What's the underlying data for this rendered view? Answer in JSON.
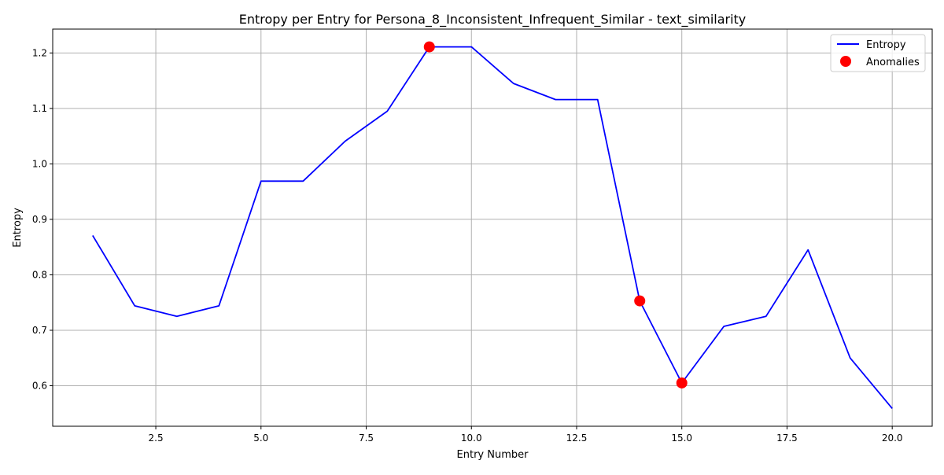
{
  "chart_data": {
    "type": "line",
    "title": "Entropy per Entry for Persona_8_Inconsistent_Infrequent_Similar - text_similarity",
    "xlabel": "Entry Number",
    "ylabel": "Entropy",
    "xlim": [
      0.05,
      20.95
    ],
    "ylim": [
      0.527,
      1.243
    ],
    "xticks": [
      2.5,
      5.0,
      7.5,
      10.0,
      12.5,
      15.0,
      17.5,
      20.0
    ],
    "xtick_labels": [
      "2.5",
      "5.0",
      "7.5",
      "10.0",
      "12.5",
      "15.0",
      "17.5",
      "20.0"
    ],
    "yticks": [
      0.6,
      0.7,
      0.8,
      0.9,
      1.0,
      1.1,
      1.2
    ],
    "ytick_labels": [
      "0.6",
      "0.7",
      "0.8",
      "0.9",
      "1.0",
      "1.1",
      "1.2"
    ],
    "grid": true,
    "legend_position": "top-right",
    "series": [
      {
        "name": "Entropy",
        "kind": "line",
        "color": "#0000ff",
        "x": [
          1,
          2,
          3,
          4,
          5,
          6,
          7,
          8,
          9,
          10,
          11,
          12,
          13,
          14,
          15,
          16,
          17,
          18,
          19,
          20
        ],
        "y": [
          0.871,
          0.744,
          0.725,
          0.744,
          0.969,
          0.969,
          1.041,
          1.095,
          1.211,
          1.211,
          1.145,
          1.116,
          1.116,
          0.753,
          0.605,
          0.707,
          0.725,
          0.845,
          0.65,
          0.559
        ]
      },
      {
        "name": "Anomalies",
        "kind": "scatter",
        "color": "#ff0000",
        "x": [
          9,
          14,
          15
        ],
        "y": [
          1.211,
          0.753,
          0.605
        ]
      }
    ]
  }
}
